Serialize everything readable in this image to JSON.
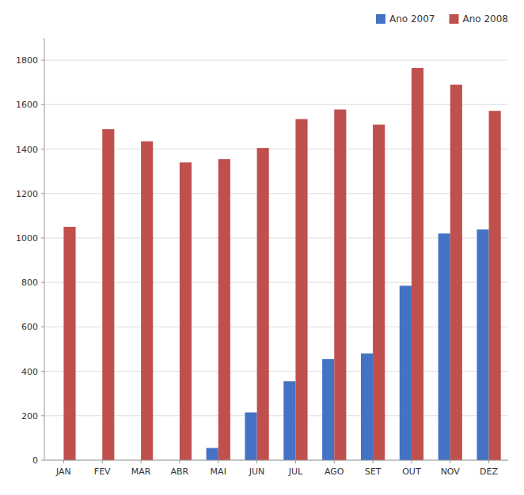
{
  "chart_data": {
    "type": "bar",
    "categories": [
      "JAN",
      "FEV",
      "MAR",
      "ABR",
      "MAI",
      "JUN",
      "JUL",
      "AGO",
      "SET",
      "OUT",
      "NOV",
      "DEZ"
    ],
    "series": [
      {
        "name": "Ano 2007",
        "color": "#4472c4",
        "values": [
          0,
          0,
          0,
          0,
          55,
          215,
          355,
          455,
          480,
          785,
          1020,
          1038
        ]
      },
      {
        "name": "Ano 2008",
        "color": "#c0504d",
        "values": [
          1050,
          1490,
          1435,
          1340,
          1355,
          1405,
          1535,
          1578,
          1510,
          1765,
          1690,
          1572
        ]
      }
    ],
    "ylim": [
      0,
      1900
    ],
    "yticks": [
      0,
      200,
      400,
      600,
      800,
      1000,
      1200,
      1400,
      1600,
      1800
    ],
    "grid": true,
    "legend": "upper right"
  }
}
